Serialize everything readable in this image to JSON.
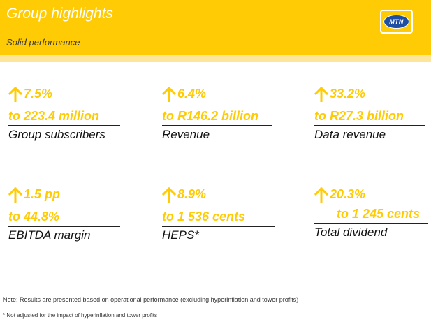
{
  "header": {
    "title": "Group highlights",
    "subtitle": "Solid performance",
    "logo_text": "MTN",
    "bg_color": "#ffcb05"
  },
  "metrics": [
    {
      "change": "7.5%",
      "value": "to 223.4 million",
      "label": "Group subscribers"
    },
    {
      "change": "6.4%",
      "value": "to R146.2 billion",
      "label": "Revenue"
    },
    {
      "change": "33.2%",
      "value": "to R27.3 billion",
      "label": "Data revenue"
    },
    {
      "change": "1.5 pp",
      "value": "to 44.8%",
      "label": "EBITDA margin"
    },
    {
      "change": "8.9%",
      "value": "to 1 536 cents",
      "label": "HEPS*"
    },
    {
      "change": "20.3%",
      "value": "to 1 245 cents",
      "label": "Total dividend"
    }
  ],
  "arrow_icon": "arrow-up-icon",
  "accent_color": "#ffcb05",
  "notes": {
    "note": "Note: Results are presented based on operational performance (excluding hyperinflation and tower profits)",
    "footnote": "* Not adjusted for the impact of hyperinflation and tower profits"
  }
}
